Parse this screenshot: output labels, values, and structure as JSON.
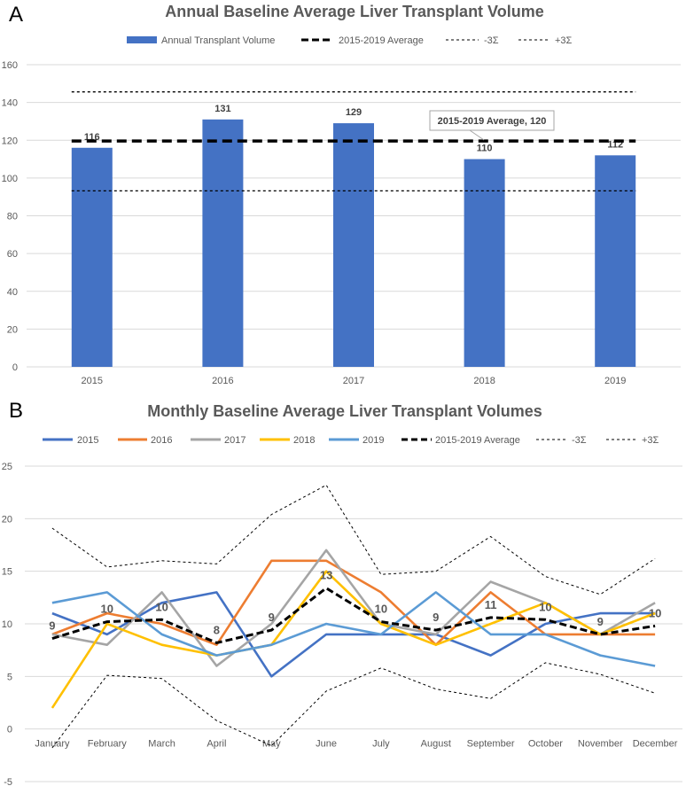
{
  "chart_data": [
    {
      "panel": "A",
      "type": "bar",
      "title": "Annual Baseline Average Liver Transplant Volume",
      "categories": [
        "2015",
        "2016",
        "2017",
        "2018",
        "2019"
      ],
      "values": [
        116,
        131,
        129,
        110,
        112
      ],
      "ylim": [
        0,
        160
      ],
      "yticks": [
        0,
        20,
        40,
        60,
        80,
        100,
        120,
        140,
        160
      ],
      "legend": [
        "Annual Transplant Volume",
        "2015-2019 Average",
        "-3Σ",
        "+3Σ"
      ],
      "average": 119.6,
      "minus3sigma": 93.2,
      "plus3sigma": 145.6,
      "callout": "2015-2019 Average, 120",
      "colors": {
        "bar": "#4472C4",
        "average": "#000000",
        "sigma": "#000000"
      }
    },
    {
      "panel": "B",
      "type": "line",
      "title": "Monthly Baseline Average Liver Transplant Volumes",
      "categories": [
        "January",
        "February",
        "March",
        "April",
        "May",
        "June",
        "July",
        "August",
        "September",
        "October",
        "November",
        "December"
      ],
      "ylim": [
        -5,
        25
      ],
      "yticks": [
        -5,
        0,
        5,
        10,
        15,
        20,
        25
      ],
      "series": [
        {
          "name": "2015",
          "color": "#4472C4",
          "values": [
            11,
            9,
            12,
            13,
            5,
            9,
            9,
            9,
            7,
            10,
            11,
            11
          ]
        },
        {
          "name": "2016",
          "color": "#ED7D31",
          "values": [
            9,
            11,
            10,
            8,
            16,
            16,
            13,
            8,
            13,
            9,
            9,
            9
          ]
        },
        {
          "name": "2017",
          "color": "#A5A5A5",
          "values": [
            9,
            8,
            13,
            6,
            10,
            17,
            10,
            9,
            14,
            12,
            9,
            12
          ]
        },
        {
          "name": "2018",
          "color": "#FFC000",
          "values": [
            2,
            10,
            8,
            7,
            8,
            15,
            10,
            8,
            10,
            12,
            9,
            11
          ]
        },
        {
          "name": "2019",
          "color": "#5B9BD5",
          "values": [
            12,
            13,
            9,
            7,
            8,
            10,
            9,
            13,
            9,
            9,
            7,
            6
          ]
        }
      ],
      "average": {
        "name": "2015-2019 Average",
        "values": [
          8.6,
          10.2,
          10.4,
          8.2,
          9.4,
          13.4,
          10.2,
          9.4,
          10.6,
          10.4,
          9,
          9.8
        ]
      },
      "average_labels": [
        "9",
        "10",
        "10",
        "8",
        "9",
        "13",
        "10",
        "9",
        "11",
        "10",
        "9",
        "10"
      ],
      "minus3sigma": {
        "name": "-3Σ",
        "values": [
          -1.8,
          5.1,
          4.8,
          0.8,
          -1.6,
          3.6,
          5.8,
          3.8,
          2.9,
          6.3,
          5.2,
          3.4
        ]
      },
      "plus3sigma": {
        "name": "+3Σ",
        "values": [
          19.1,
          15.4,
          16.0,
          15.7,
          20.4,
          23.2,
          14.7,
          15.0,
          18.3,
          14.5,
          12.8,
          16.2
        ]
      }
    }
  ]
}
